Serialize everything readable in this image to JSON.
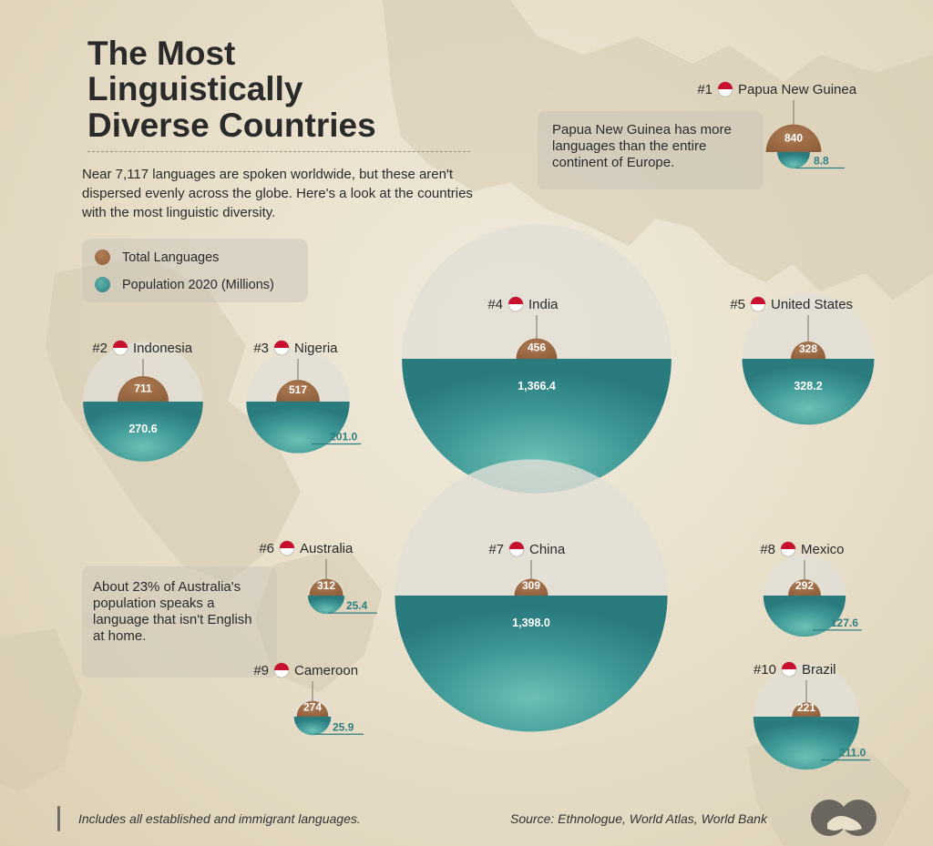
{
  "header": {
    "title_line1": "The Most",
    "title_line2": "Linguistically",
    "title_line3": "Diverse Countries",
    "subtitle": "Near 7,117 languages are spoken worldwide, but these aren't dispersed evenly across the globe. Here's a look at the countries with the most linguistic diversity."
  },
  "legend": {
    "languages_label": "Total Languages",
    "population_label": "Population 2020 (Millions)"
  },
  "callouts": {
    "png_note": "Papua New Guinea has more languages than the entire continent of Europe.",
    "australia_note": "About 23% of Australia's population speaks a language that isn't English at home."
  },
  "footer": {
    "note": "Includes all established and immigrant languages.",
    "source": "Source: Ethnologue, World Atlas, World Bank"
  },
  "colors": {
    "languages": "#9a6a45",
    "population": "#2f8486",
    "population_light": "#5fb3ab",
    "faded_circle": "#e2ded6"
  },
  "icons": {
    "flags": "country-flag-icons",
    "logo": "visual-capitalist-logo-icon"
  },
  "chart_data": {
    "type": "bubble",
    "title": "The Most Linguistically Diverse Countries",
    "series": [
      {
        "name": "Total Languages"
      },
      {
        "name": "Population 2020 (Millions)"
      }
    ],
    "countries": [
      {
        "rank": "#1",
        "country": "Papua New Guinea",
        "languages": 840,
        "population": 8.8,
        "languages_label": "840",
        "population_label": "8.8"
      },
      {
        "rank": "#2",
        "country": "Indonesia",
        "languages": 711,
        "population": 270.6,
        "languages_label": "711",
        "population_label": "270.6"
      },
      {
        "rank": "#3",
        "country": "Nigeria",
        "languages": 517,
        "population": 201.0,
        "languages_label": "517",
        "population_label": "201.0"
      },
      {
        "rank": "#4",
        "country": "India",
        "languages": 456,
        "population": 1366.4,
        "languages_label": "456",
        "population_label": "1,366.4"
      },
      {
        "rank": "#5",
        "country": "United States",
        "languages": 328,
        "population": 328.2,
        "languages_label": "328",
        "population_label": "328.2"
      },
      {
        "rank": "#6",
        "country": "Australia",
        "languages": 312,
        "population": 25.4,
        "languages_label": "312",
        "population_label": "25.4"
      },
      {
        "rank": "#7",
        "country": "China",
        "languages": 309,
        "population": 1398.0,
        "languages_label": "309",
        "population_label": "1,398.0"
      },
      {
        "rank": "#8",
        "country": "Mexico",
        "languages": 292,
        "population": 127.6,
        "languages_label": "292",
        "population_label": "127.6"
      },
      {
        "rank": "#9",
        "country": "Cameroon",
        "languages": 274,
        "population": 25.9,
        "languages_label": "274",
        "population_label": "25.9"
      },
      {
        "rank": "#10",
        "country": "Brazil",
        "languages": 221,
        "population": 211.0,
        "languages_label": "221",
        "population_label": "211.0"
      }
    ]
  }
}
